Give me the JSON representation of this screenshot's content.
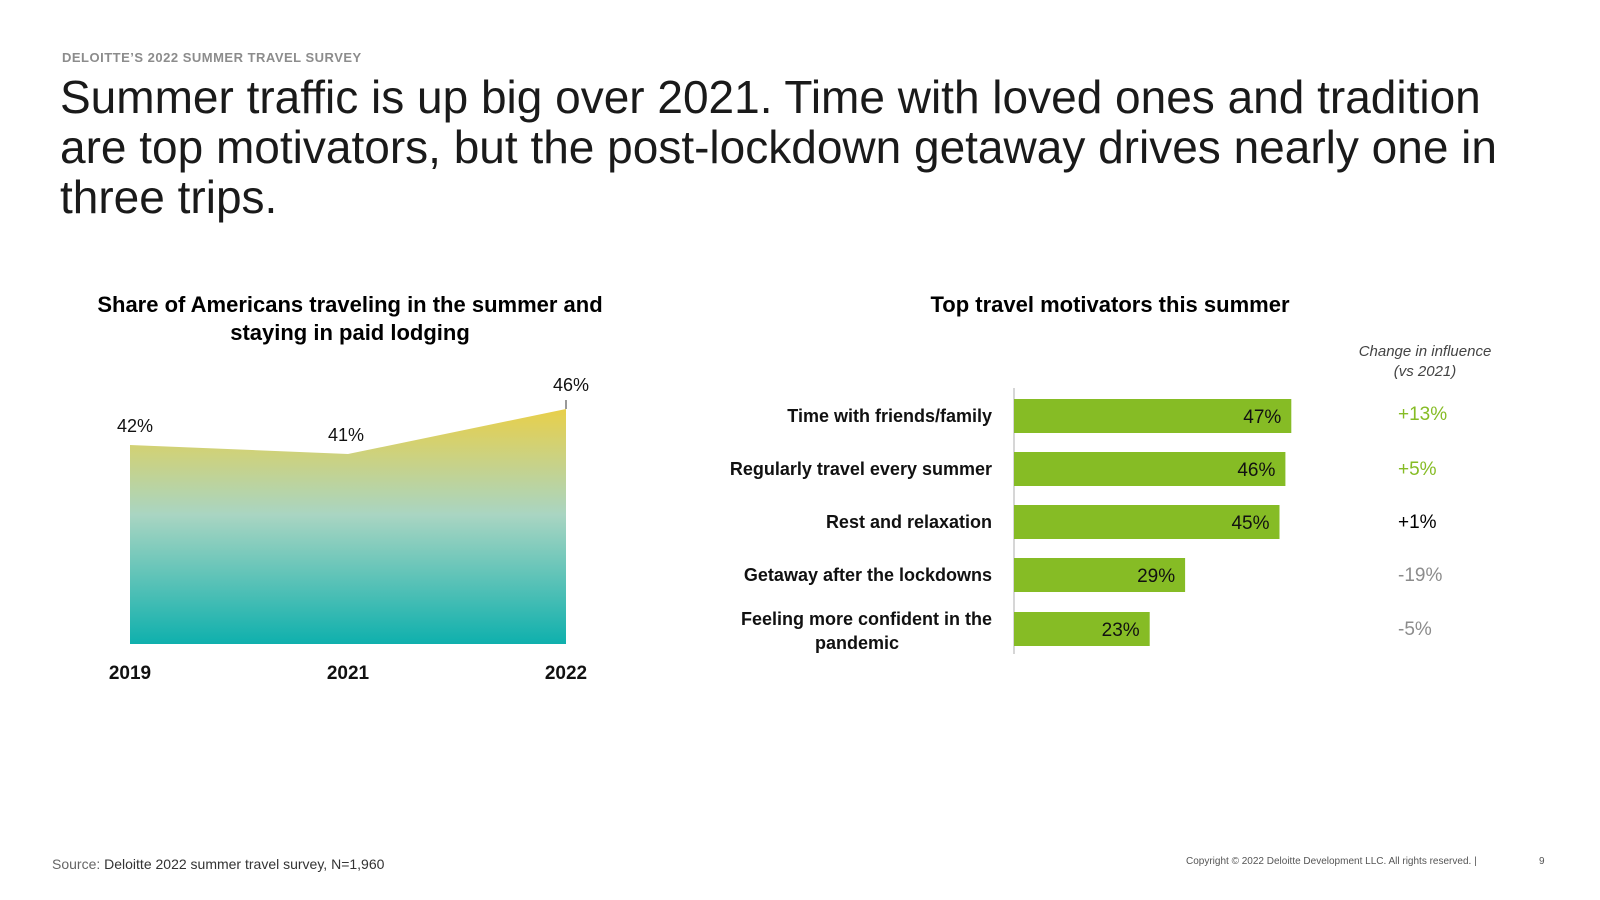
{
  "header": {
    "kicker": "DELOITTE’S 2022 SUMMER TRAVEL SURVEY",
    "headline": "Summer traffic is up big over 2021. Time with loved ones and tradition are top motivators, but the post-lockdown getaway drives nearly one in three trips."
  },
  "chart_data": [
    {
      "type": "area",
      "title": "Share of Americans traveling in the summer and staying in paid lodging",
      "categories": [
        "2019",
        "2021",
        "2022"
      ],
      "values": [
        42,
        41,
        46
      ],
      "data_labels": [
        "42%",
        "41%",
        "46%"
      ],
      "gradient_colors": [
        "#e8cf4a",
        "#a9d5c2",
        "#0fb0ad"
      ]
    },
    {
      "type": "bar",
      "orientation": "horizontal",
      "title": "Top travel motivators this summer",
      "categories": [
        "Time with friends/family",
        "Regularly travel every summer",
        "Rest and relaxation",
        "Getaway after the lockdowns",
        "Feeling more confident in the pandemic"
      ],
      "values": [
        47,
        46,
        45,
        29,
        23
      ],
      "data_labels": [
        "47%",
        "46%",
        "45%",
        "29%",
        "23%"
      ],
      "bar_color": "#86bc25",
      "change_header": [
        "Change in influence",
        "(vs 2021)"
      ],
      "changes": [
        "+13%",
        "+5%",
        "+1%",
        "-19%",
        "-5%"
      ],
      "change_colors": [
        "#86bc25",
        "#86bc25",
        "#000000",
        "#8c8c8c",
        "#8c8c8c"
      ]
    }
  ],
  "footer": {
    "source_label": "Source:",
    "source_text": "Deloitte 2022 summer travel survey, N=1,960",
    "copyright": "Copyright © 2022 Deloitte Development LLC. All rights reserved. |",
    "page_number": "9"
  }
}
